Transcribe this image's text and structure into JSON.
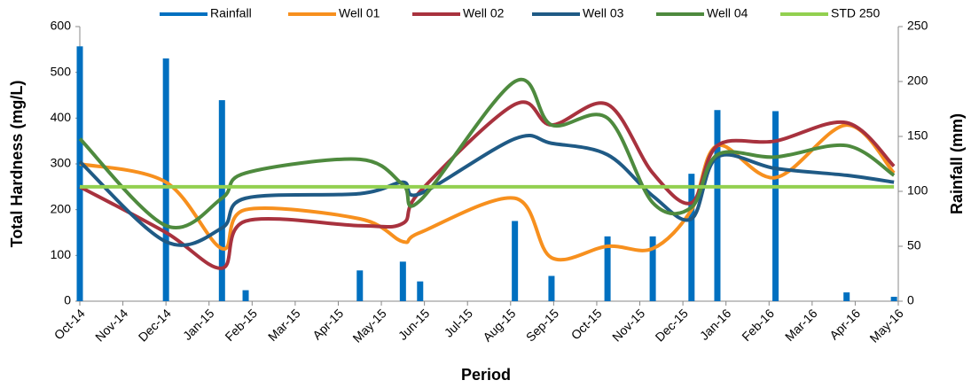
{
  "chart_data": {
    "type": "combo",
    "x_label": "Period",
    "y_label": "Total Hardness (mg/L)",
    "y2_label": "Rainfall (mm)",
    "x": [
      0,
      2,
      3.3,
      3.85,
      6.5,
      7.5,
      7.9,
      10.1,
      10.95,
      12.25,
      13.3,
      14.2,
      14.8,
      16.15,
      17.8,
      18.9
    ],
    "xlim": [
      0,
      19
    ],
    "xticks": [
      {
        "value": 0,
        "label": "Oct-14"
      },
      {
        "value": 1,
        "label": "Nov-14"
      },
      {
        "value": 2,
        "label": "Dec-14"
      },
      {
        "value": 3,
        "label": "Jan-15"
      },
      {
        "value": 4,
        "label": "Feb-15"
      },
      {
        "value": 5,
        "label": "Mar-15"
      },
      {
        "value": 6,
        "label": "Apr-15"
      },
      {
        "value": 7,
        "label": "May-15"
      },
      {
        "value": 8,
        "label": "Jun-15"
      },
      {
        "value": 9,
        "label": "Jul-15"
      },
      {
        "value": 10,
        "label": "Aug-15"
      },
      {
        "value": 11,
        "label": "Sep-15"
      },
      {
        "value": 12,
        "label": "Oct-15"
      },
      {
        "value": 13,
        "label": "Nov-15"
      },
      {
        "value": 14,
        "label": "Dec-15"
      },
      {
        "value": 15,
        "label": "Jan-16"
      },
      {
        "value": 16,
        "label": "Feb-16"
      },
      {
        "value": 17,
        "label": "Mar-16"
      },
      {
        "value": 18,
        "label": "Apr-16"
      },
      {
        "value": 19,
        "label": "May-16"
      }
    ],
    "ylim": [
      0,
      600
    ],
    "yticks": [
      0,
      100,
      200,
      300,
      400,
      500,
      600
    ],
    "y2lim": [
      0,
      250
    ],
    "y2ticks": [
      0,
      50,
      100,
      150,
      200,
      250
    ],
    "series": [
      {
        "name": "Rainfall",
        "type": "bar",
        "axis": "y2",
        "color": "#0070c0",
        "values": [
          232,
          221,
          183,
          10,
          28,
          36,
          18,
          73,
          23,
          59,
          59,
          116,
          174,
          173,
          8,
          4
        ]
      },
      {
        "name": "Well 01",
        "type": "line",
        "color": "#f7901e",
        "values": [
          300,
          260,
          115,
          200,
          180,
          130,
          150,
          225,
          95,
          120,
          115,
          200,
          340,
          270,
          385,
          280
        ]
      },
      {
        "name": "Well 02",
        "type": "line",
        "color": "#a8323e",
        "values": [
          250,
          150,
          72,
          175,
          165,
          170,
          240,
          430,
          385,
          430,
          280,
          215,
          340,
          350,
          390,
          295
        ]
      },
      {
        "name": "Well 03",
        "type": "line",
        "color": "#1f5a85",
        "values": [
          305,
          130,
          160,
          225,
          235,
          260,
          235,
          355,
          345,
          320,
          230,
          180,
          315,
          290,
          275,
          260
        ]
      },
      {
        "name": "Well 04",
        "type": "line",
        "color": "#4e8a3e",
        "values": [
          355,
          165,
          225,
          280,
          310,
          255,
          220,
          480,
          385,
          400,
          215,
          205,
          320,
          315,
          340,
          275
        ]
      },
      {
        "name": "STD 250",
        "type": "line",
        "color": "#92d050",
        "values": [
          250,
          250,
          250,
          250,
          250,
          250,
          250,
          250,
          250,
          250,
          250,
          250,
          250,
          250,
          250,
          250
        ]
      }
    ]
  }
}
